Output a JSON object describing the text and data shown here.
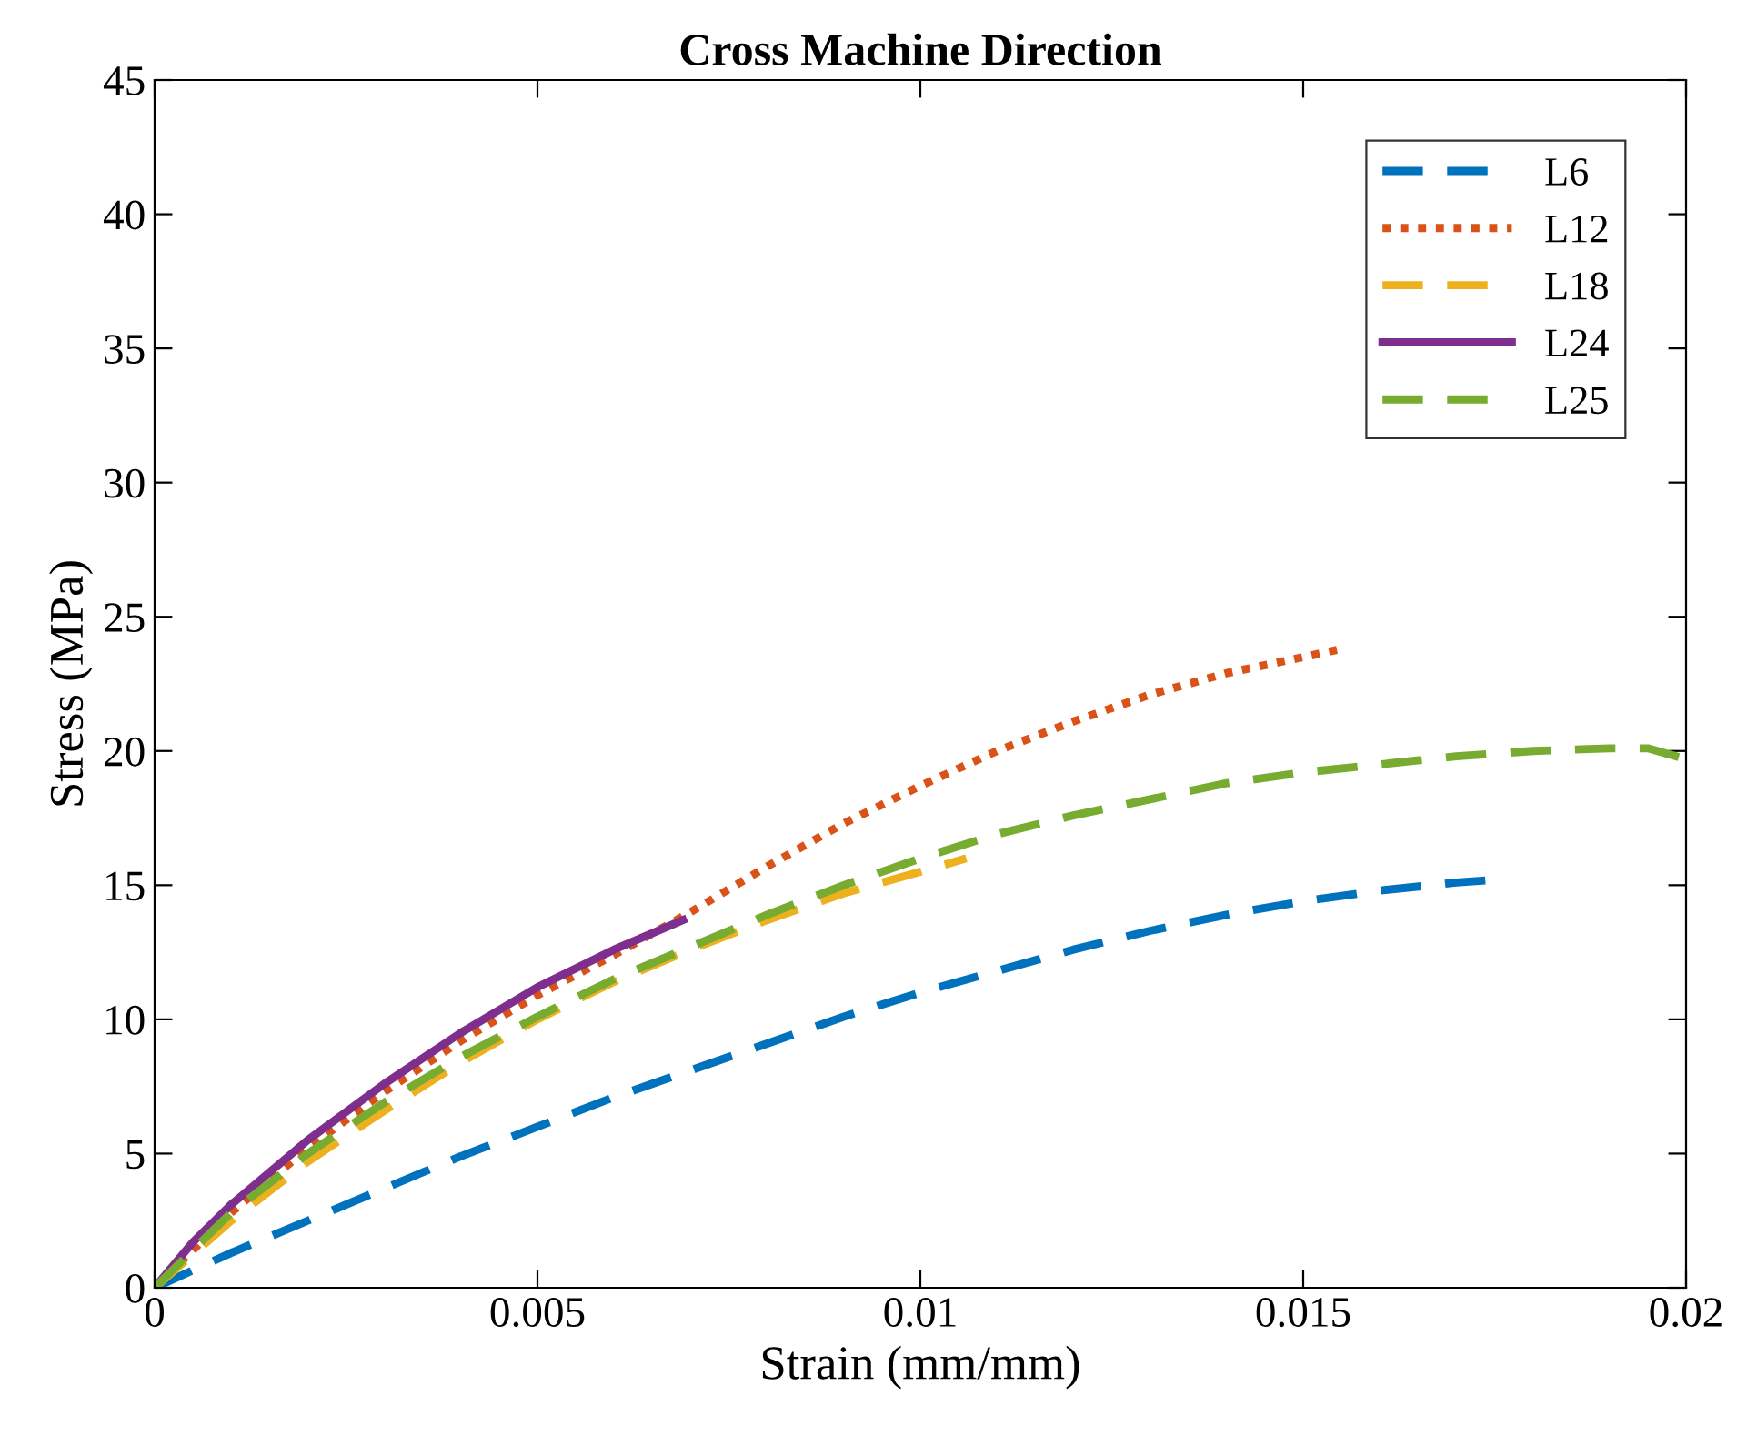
{
  "chart_data": {
    "type": "line",
    "title": "Cross Machine Direction",
    "xlabel": "Strain (mm/mm)",
    "ylabel": "Stress (MPa)",
    "xlim": [
      0,
      0.02
    ],
    "ylim": [
      0,
      45
    ],
    "xticks": [
      0,
      0.005,
      0.01,
      0.015,
      0.02
    ],
    "yticks": [
      0,
      5,
      10,
      15,
      20,
      25,
      30,
      35,
      40,
      45
    ],
    "grid": false,
    "legend": "top right",
    "series": [
      {
        "name": "L6",
        "color": "#0072bd",
        "line_style": "dashed",
        "x": [
          0,
          0.001,
          0.002,
          0.003,
          0.004,
          0.005,
          0.006,
          0.007,
          0.008,
          0.009,
          0.01,
          0.011,
          0.012,
          0.013,
          0.014,
          0.015,
          0.016,
          0.017,
          0.0175
        ],
        "values": [
          0,
          1.3,
          2.5,
          3.7,
          4.9,
          6.0,
          7.1,
          8.1,
          9.1,
          10.1,
          11.0,
          11.8,
          12.6,
          13.3,
          13.9,
          14.4,
          14.8,
          15.1,
          15.2
        ]
      },
      {
        "name": "L12",
        "color": "#d95319",
        "line_style": "dotted",
        "x": [
          0,
          0.001,
          0.002,
          0.003,
          0.004,
          0.005,
          0.006,
          0.007,
          0.008,
          0.009,
          0.01,
          0.011,
          0.012,
          0.013,
          0.014,
          0.015,
          0.0155
        ],
        "values": [
          0,
          2.8,
          5.2,
          7.3,
          9.2,
          10.9,
          12.4,
          14.0,
          15.7,
          17.3,
          18.7,
          20.0,
          21.1,
          22.1,
          22.9,
          23.5,
          23.8
        ]
      },
      {
        "name": "L18",
        "color": "#edb120",
        "line_style": "dashed",
        "x": [
          0,
          0.001,
          0.002,
          0.003,
          0.004,
          0.005,
          0.006,
          0.007,
          0.008,
          0.009,
          0.01,
          0.0106
        ],
        "values": [
          0,
          2.5,
          4.7,
          6.6,
          8.4,
          10.0,
          11.4,
          12.6,
          13.7,
          14.7,
          15.5,
          16.0
        ]
      },
      {
        "name": "L24",
        "color": "#7e2f8e",
        "line_style": "solid",
        "x": [
          0,
          0.0005,
          0.001,
          0.002,
          0.003,
          0.004,
          0.005,
          0.006,
          0.0069
        ],
        "values": [
          0,
          1.7,
          3.1,
          5.5,
          7.6,
          9.5,
          11.2,
          12.6,
          13.7
        ]
      },
      {
        "name": "L25",
        "color": "#77ac30",
        "line_style": "dashed",
        "x": [
          0,
          0.001,
          0.002,
          0.003,
          0.004,
          0.005,
          0.006,
          0.007,
          0.008,
          0.009,
          0.01,
          0.011,
          0.012,
          0.013,
          0.014,
          0.015,
          0.016,
          0.017,
          0.018,
          0.019,
          0.0195,
          0.02
        ],
        "values": [
          0,
          2.8,
          5.0,
          6.9,
          8.6,
          10.1,
          11.5,
          12.7,
          13.9,
          15.0,
          16.0,
          16.9,
          17.6,
          18.2,
          18.8,
          19.2,
          19.5,
          19.8,
          20.0,
          20.1,
          20.1,
          19.7
        ]
      }
    ]
  }
}
